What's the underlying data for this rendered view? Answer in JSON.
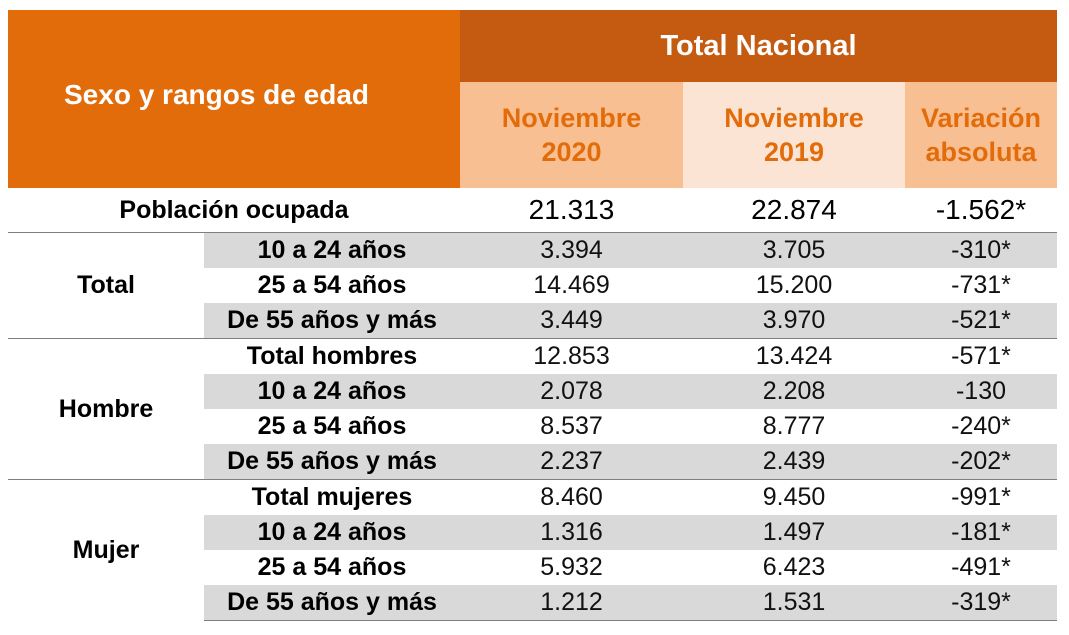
{
  "header": {
    "row_header": "Sexo y rangos de edad",
    "group_title": "Total Nacional",
    "columns": [
      {
        "line1": "Noviembre",
        "line2": "2020"
      },
      {
        "line1": "Noviembre",
        "line2": "2019"
      },
      {
        "line1": "Variación",
        "line2": "absoluta"
      }
    ]
  },
  "main_row": {
    "label": "Población ocupada",
    "values": [
      "21.313",
      "22.874",
      "-1.562*"
    ]
  },
  "groups": [
    {
      "name": "Total",
      "rows": [
        {
          "label": "10 a 24 años",
          "values": [
            "3.394",
            "3.705",
            "-310*"
          ]
        },
        {
          "label": "25 a 54 años",
          "values": [
            "14.469",
            "15.200",
            "-731*"
          ]
        },
        {
          "label": "De 55 años y más",
          "values": [
            "3.449",
            "3.970",
            "-521*"
          ]
        }
      ]
    },
    {
      "name": "Hombre",
      "rows": [
        {
          "label": "Total hombres",
          "values": [
            "12.853",
            "13.424",
            "-571*"
          ]
        },
        {
          "label": "10 a 24 años",
          "values": [
            "2.078",
            "2.208",
            "-130"
          ]
        },
        {
          "label": "25 a 54 años",
          "values": [
            "8.537",
            "8.777",
            "-240*"
          ]
        },
        {
          "label": "De 55 años y más",
          "values": [
            "2.237",
            "2.439",
            "-202*"
          ]
        }
      ]
    },
    {
      "name": "Mujer",
      "rows": [
        {
          "label": "Total mujeres",
          "values": [
            "8.460",
            "9.450",
            "-991*"
          ]
        },
        {
          "label": "10 a 24 años",
          "values": [
            "1.316",
            "1.497",
            "-181*"
          ]
        },
        {
          "label": "25 a 54 años",
          "values": [
            "5.932",
            "6.423",
            "-491*"
          ]
        },
        {
          "label": "De 55 años y más",
          "values": [
            "1.212",
            "1.531",
            "-319*"
          ]
        }
      ]
    }
  ],
  "colors": {
    "header_orange": "#e36c0a",
    "header_dark_orange": "#c55a11",
    "subheader_peach": "#f8bf93",
    "subheader_light": "#fce4d4",
    "row_grey": "#d9d9d9"
  }
}
